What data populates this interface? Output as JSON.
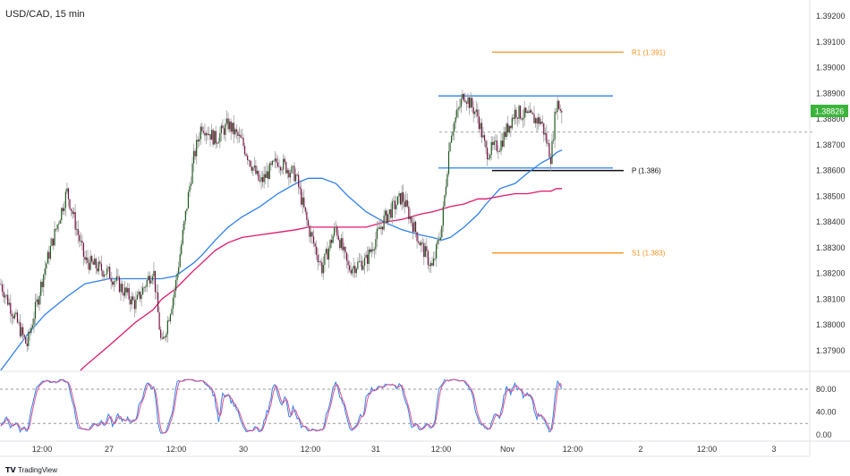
{
  "header": {
    "title": "USD/CAD, 15 min"
  },
  "footer": {
    "brand": "TradingView"
  },
  "colors": {
    "up": "#1e5c1e",
    "down": "#7a0f45",
    "wick": "#9e9e9e",
    "ma_fast": "#2f80ed",
    "ma_slow": "#e0186c",
    "level_orange": "#f7931e",
    "level_blue": "#2f80ed",
    "pivot": "#111111",
    "last_price_bg": "#3cb43c",
    "stoch_k": "#2f80ed",
    "stoch_d": "#e0508c"
  },
  "chart_data": [
    {
      "type": "candlestick",
      "title": "USD/CAD, 15 min",
      "ylim": [
        1.3785,
        1.3925
      ],
      "grid": false,
      "price_axis_ticks": [
        "1.39200",
        "1.39100",
        "1.39000",
        "1.38900",
        "1.38800",
        "1.38700",
        "1.38600",
        "1.38500",
        "1.38400",
        "1.38300",
        "1.38200",
        "1.38100",
        "1.38000",
        "1.37900"
      ],
      "time_axis_ticks": [
        "12:00",
        "27",
        "12:00",
        "30",
        "12:00",
        "31",
        "12:00",
        "Nov",
        "12:00",
        "2",
        "12:00",
        "3"
      ],
      "last_price": "1.38826",
      "price_path": [
        [
          "Oct 26 04:30",
          1.3816
        ],
        [
          "Oct 26 09:15",
          1.3792
        ],
        [
          "Oct 26 12:30",
          1.3822
        ],
        [
          "Oct 26 16:30",
          1.3852
        ],
        [
          "Oct 26 19:45",
          1.3825
        ],
        [
          "Oct 27 00:00",
          1.382
        ],
        [
          "Oct 27 04:45",
          1.3808
        ],
        [
          "Oct 27 08:00",
          1.3822
        ],
        [
          "Oct 27 09:30",
          1.3791
        ],
        [
          "Oct 27 12:00",
          1.3815
        ],
        [
          "Oct 27 15:15",
          1.3864
        ],
        [
          "Oct 27 16:45",
          1.3878
        ],
        [
          "Oct 27 19:15",
          1.3872
        ],
        [
          "Oct 29 21:15",
          1.3878
        ],
        [
          "Oct 29 23:45",
          1.3871
        ],
        [
          "Oct 30 03:00",
          1.3855
        ],
        [
          "Oct 30 06:15",
          1.3864
        ],
        [
          "Oct 30 09:30",
          1.3858
        ],
        [
          "Oct 30 11:45",
          1.3838
        ],
        [
          "Oct 30 14:15",
          1.3822
        ],
        [
          "Oct 30 16:45",
          1.3838
        ],
        [
          "Oct 30 19:00",
          1.3822
        ],
        [
          "Oct 30 22:15",
          1.3825
        ],
        [
          "Oct 31 01:30",
          1.3841
        ],
        [
          "Oct 31 04:45",
          1.385
        ],
        [
          "Oct 31 08:00",
          1.3832
        ],
        [
          "Oct 31 10:15",
          1.3822
        ],
        [
          "Oct 31 12:00",
          1.3839
        ],
        [
          "Oct 31 13:30",
          1.3874
        ],
        [
          "Oct 31 16:00",
          1.389
        ],
        [
          "Oct 31 18:30",
          1.3881
        ],
        [
          "Oct 31 20:00",
          1.3867
        ],
        [
          "Oct 31 22:30",
          1.387
        ],
        [
          "Nov 1 01:15",
          1.3883
        ],
        [
          "Nov 1 03:30",
          1.3881
        ],
        [
          "Nov 1 06:00",
          1.3879
        ],
        [
          "Nov 1 07:45",
          1.3865
        ],
        [
          "Nov 1 08:45",
          1.3887
        ],
        [
          "Nov 1 09:45",
          1.38826
        ]
      ],
      "moving_averages": [
        {
          "color_key": "ma_fast",
          "values": [
            1.3782,
            1.3796,
            1.3804,
            1.3811,
            1.3816,
            1.3818,
            1.3818,
            1.3818,
            1.3818,
            1.3819,
            1.3824,
            1.3827,
            1.3833,
            1.3838,
            1.3842,
            1.3846,
            1.3851,
            1.3855,
            1.3857,
            1.3857,
            1.3855,
            1.385,
            1.3844,
            1.384,
            1.3837,
            1.3835,
            1.3834,
            1.3833,
            1.3834,
            1.3838,
            1.3843,
            1.3847,
            1.3853,
            1.3855,
            1.3859,
            1.3863,
            1.3865,
            1.3867,
            1.3868
          ]
        },
        {
          "color_key": "ma_slow",
          "values": [
            null,
            null,
            null,
            null,
            1.3784,
            1.3792,
            1.3801,
            1.3806,
            1.381,
            1.3814,
            1.3821,
            1.3824,
            1.3829,
            1.3832,
            1.3834,
            1.3835,
            1.3836,
            1.3837,
            1.3838,
            1.3838,
            1.3838,
            1.3838,
            1.3838,
            1.384,
            1.3841,
            1.3843,
            1.3844,
            1.3845,
            1.3846,
            1.3847,
            1.3849,
            1.3849,
            1.385,
            1.3851,
            1.3851,
            1.3852,
            1.3852,
            1.3853,
            1.3853
          ]
        }
      ],
      "levels": [
        {
          "id": "r1",
          "label": "R1 (1.391)",
          "price": 1.3906,
          "color_key": "level_orange",
          "from": "Oct 31 21:00",
          "to": "Nov 1 21:30"
        },
        {
          "id": "p",
          "label": "P (1.386)",
          "price": 1.386,
          "color_key": "pivot",
          "from": "Oct 31 21:00",
          "to": "Nov 1 21:30"
        },
        {
          "id": "s1",
          "label": "S1 (1.383)",
          "price": 1.3828,
          "color_key": "level_orange",
          "from": "Oct 31 21:00",
          "to": "Nov 1 21:30"
        },
        {
          "id": "range-top",
          "label": "",
          "price": 1.3889,
          "color_key": "level_blue",
          "from": "Oct 31 11:30",
          "to": "Nov 1 19:30"
        },
        {
          "id": "range-bottom",
          "label": "",
          "price": 1.3861,
          "color_key": "level_blue",
          "from": "Oct 31 11:30",
          "to": "Nov 1 19:30"
        }
      ],
      "midline": {
        "price": 1.3875,
        "from": "Oct 31 11:30",
        "to": "Nov 1 19:30"
      }
    },
    {
      "type": "line",
      "indicator": "stochastic",
      "ylim": [
        0,
        100
      ],
      "ticks": [
        "80.00",
        "40.00",
        "0.00"
      ],
      "bands": [
        80,
        20
      ]
    }
  ]
}
